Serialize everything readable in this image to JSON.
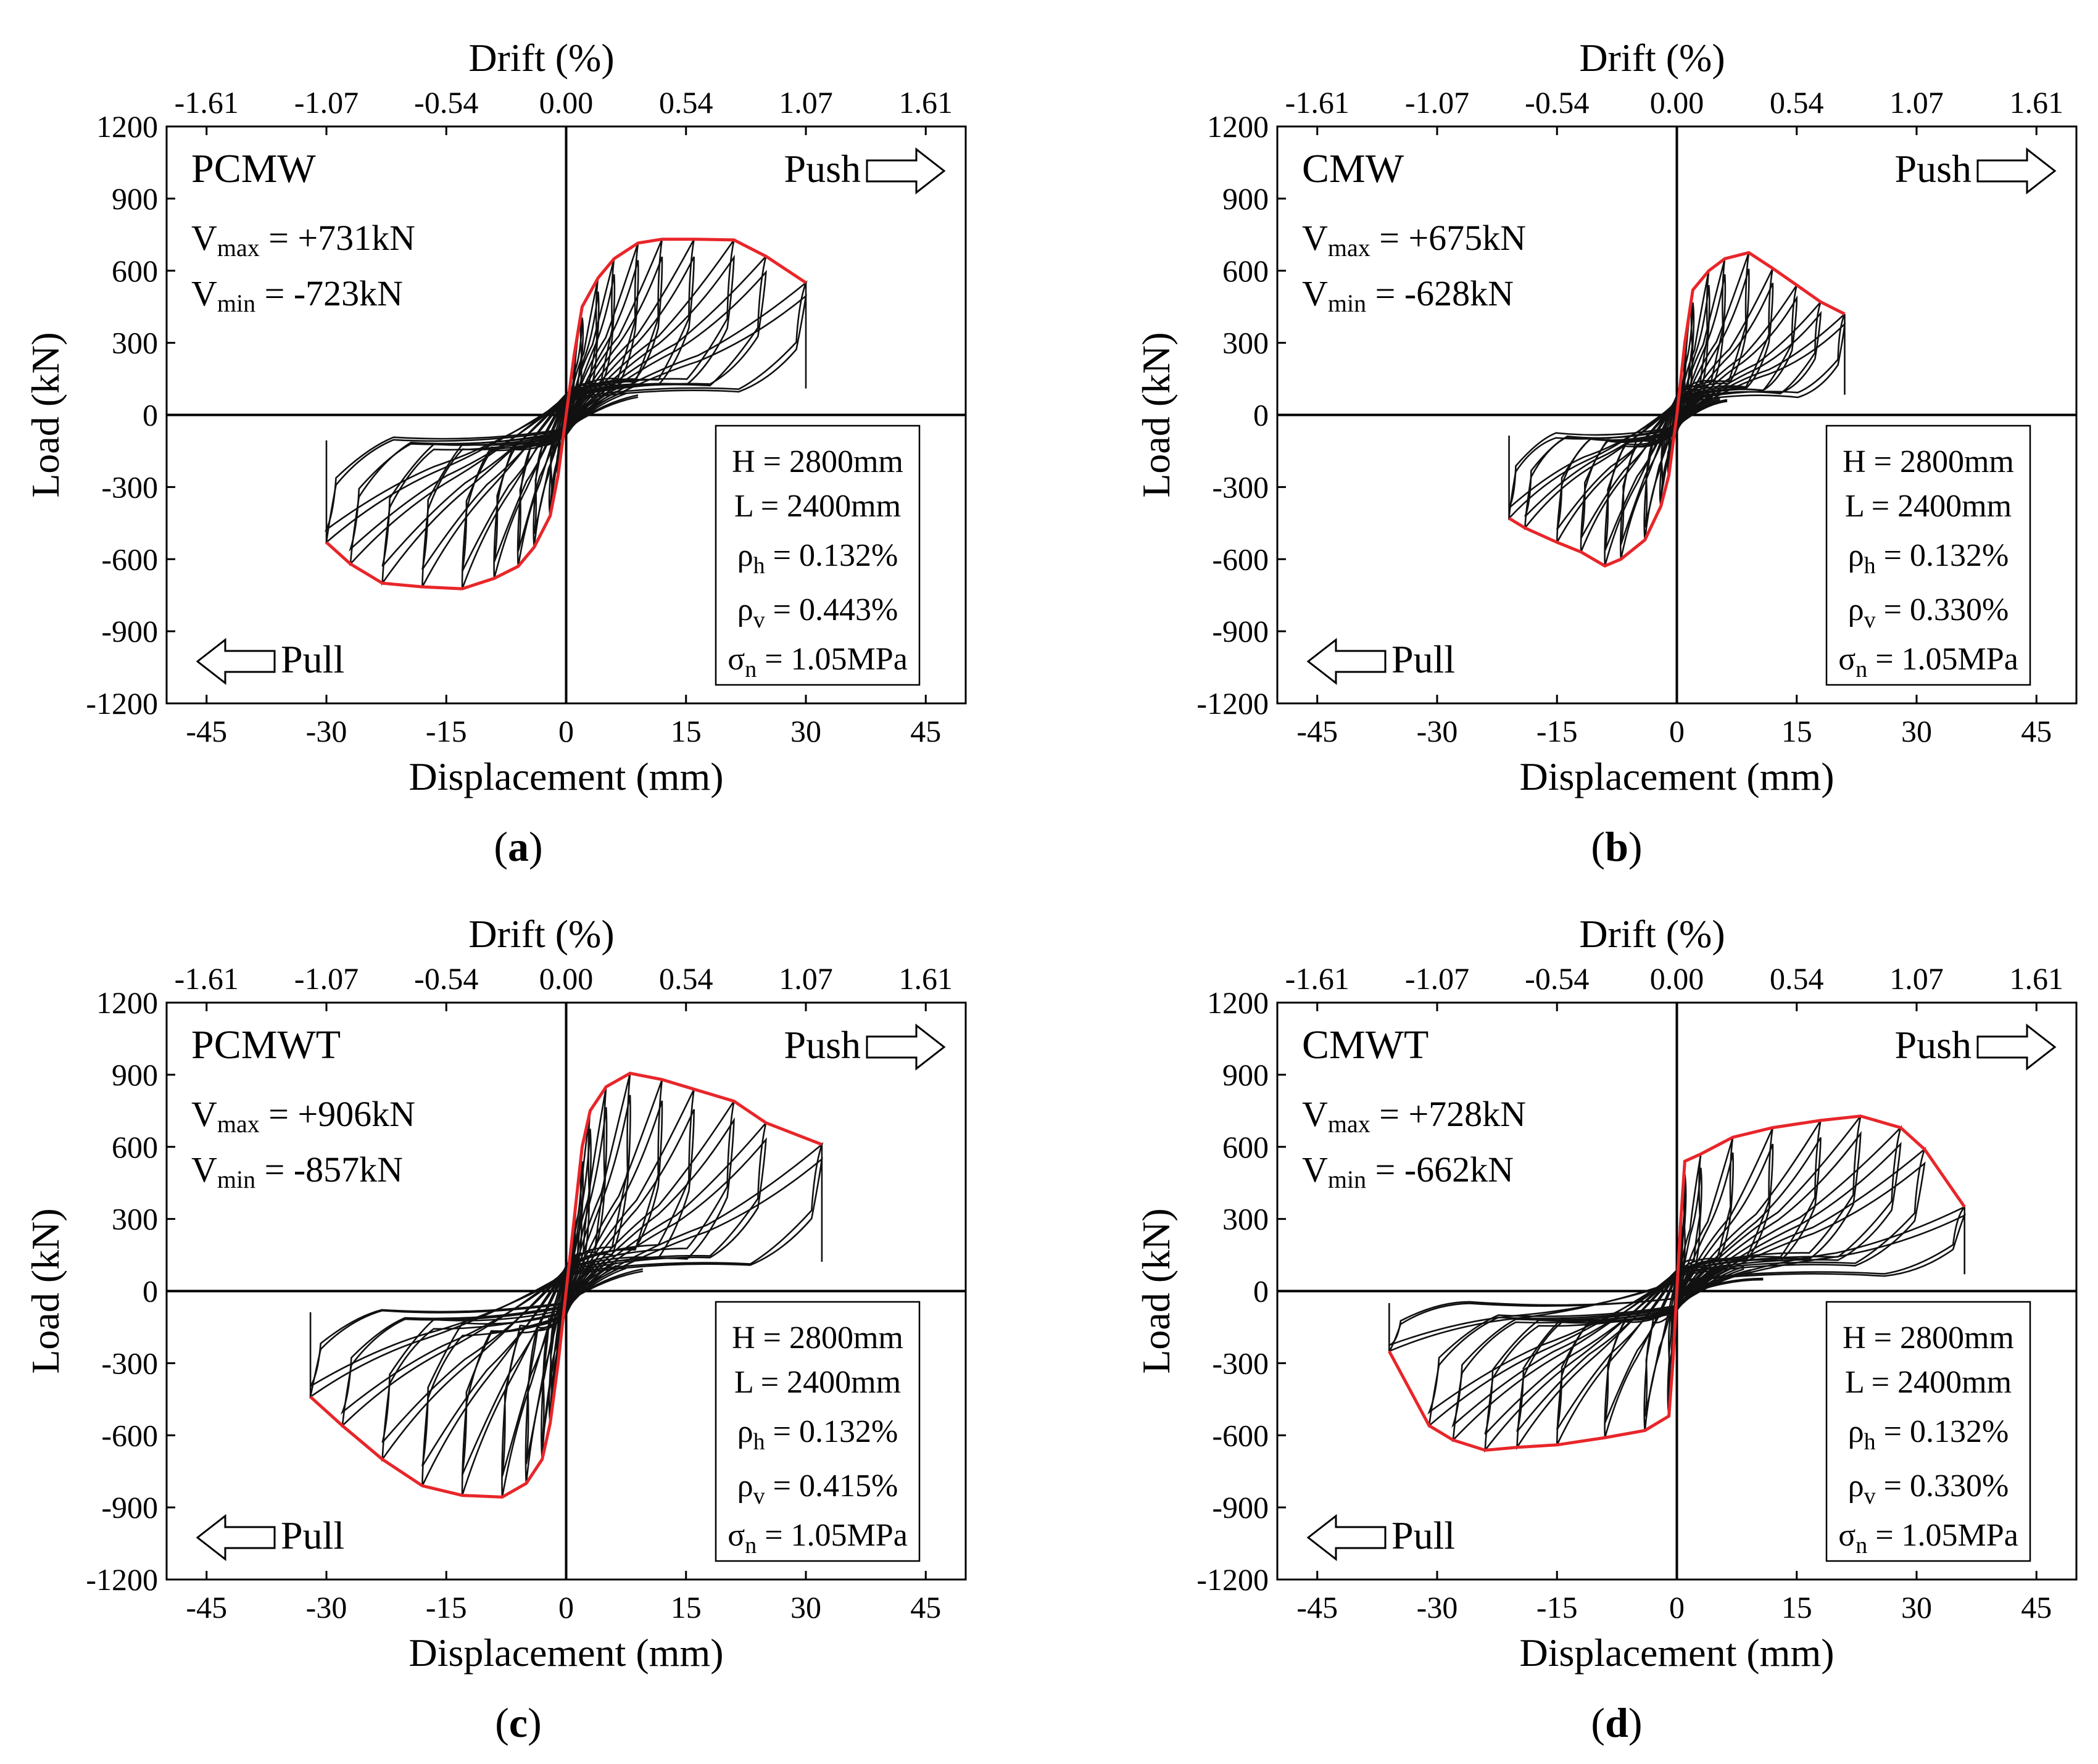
{
  "chart_data": [
    {
      "type": "line",
      "panel_label": "a",
      "specimen": "PCMW",
      "vmax_text": "Vmax = +731kN",
      "vmin_text": "Vmin = -723kN",
      "xlabel": "Displacement (mm)",
      "ylabel": "Load (kN)",
      "x2label": "Drift (%)",
      "xlim": [
        -50,
        50
      ],
      "ylim": [
        -1200,
        1200
      ],
      "xticks": [
        "-45",
        "-30",
        "-15",
        "0",
        "15",
        "30",
        "45"
      ],
      "yticks": [
        "1200",
        "900",
        "600",
        "300",
        "0",
        "-300",
        "-600",
        "-900",
        "-1200"
      ],
      "x2ticks": [
        "-1.61",
        "-1.07",
        "-0.54",
        "0.00",
        "0.54",
        "1.07",
        "1.61"
      ],
      "push_label": "Push",
      "pull_label": "Pull",
      "params": {
        "H": "2800mm",
        "L": "2400mm",
        "rho_h": "0.132%",
        "rho_v": "0.443%",
        "sigma_n": "1.05MPa"
      },
      "envelope_pos": [
        [
          0,
          0
        ],
        [
          1,
          250
        ],
        [
          2,
          450
        ],
        [
          4,
          570
        ],
        [
          6,
          650
        ],
        [
          9,
          715
        ],
        [
          12,
          731
        ],
        [
          16,
          731
        ],
        [
          21,
          728
        ],
        [
          25,
          660
        ],
        [
          30,
          550
        ]
      ],
      "envelope_neg": [
        [
          0,
          0
        ],
        [
          -1,
          -250
        ],
        [
          -2,
          -420
        ],
        [
          -4,
          -550
        ],
        [
          -6,
          -630
        ],
        [
          -9,
          -680
        ],
        [
          -13,
          -723
        ],
        [
          -18,
          -715
        ],
        [
          -23,
          -700
        ],
        [
          -27,
          -620
        ],
        [
          -30,
          -530
        ]
      ]
    },
    {
      "type": "line",
      "panel_label": "b",
      "specimen": "CMW",
      "vmax_text": "Vmax = +675kN",
      "vmin_text": "Vmin = -628kN",
      "xlabel": "Displacement (mm)",
      "ylabel": "Load (kN)",
      "x2label": "Drift (%)",
      "xlim": [
        -50,
        50
      ],
      "ylim": [
        -1200,
        1200
      ],
      "xticks": [
        "-45",
        "-30",
        "-15",
        "0",
        "15",
        "30",
        "45"
      ],
      "yticks": [
        "1200",
        "900",
        "600",
        "300",
        "0",
        "-300",
        "-600",
        "-900",
        "-1200"
      ],
      "x2ticks": [
        "-1.61",
        "-1.07",
        "-0.54",
        "0.00",
        "0.54",
        "1.07",
        "1.61"
      ],
      "push_label": "Push",
      "pull_label": "Pull",
      "params": {
        "H": "2800mm",
        "L": "2400mm",
        "rho_h": "0.132%",
        "rho_v": "0.330%",
        "sigma_n": "1.05MPa"
      },
      "envelope_pos": [
        [
          0,
          0
        ],
        [
          1,
          300
        ],
        [
          2,
          520
        ],
        [
          4,
          600
        ],
        [
          6,
          650
        ],
        [
          9,
          675
        ],
        [
          12,
          610
        ],
        [
          15,
          540
        ],
        [
          18,
          470
        ],
        [
          21,
          420
        ]
      ],
      "envelope_neg": [
        [
          0,
          0
        ],
        [
          -1,
          -250
        ],
        [
          -2,
          -380
        ],
        [
          -4,
          -520
        ],
        [
          -7,
          -600
        ],
        [
          -9,
          -628
        ],
        [
          -12,
          -570
        ],
        [
          -15,
          -530
        ],
        [
          -19,
          -470
        ],
        [
          -21,
          -430
        ]
      ]
    },
    {
      "type": "line",
      "panel_label": "c",
      "specimen": "PCMWT",
      "vmax_text": "Vmax = +906kN",
      "vmin_text": "Vmin = -857kN",
      "xlabel": "Displacement (mm)",
      "ylabel": "Load (kN)",
      "x2label": "Drift (%)",
      "xlim": [
        -50,
        50
      ],
      "ylim": [
        -1200,
        1200
      ],
      "xticks": [
        "-45",
        "-30",
        "-15",
        "0",
        "15",
        "30",
        "45"
      ],
      "yticks": [
        "1200",
        "900",
        "600",
        "300",
        "0",
        "-300",
        "-600",
        "-900",
        "-1200"
      ],
      "x2ticks": [
        "-1.61",
        "-1.07",
        "-0.54",
        "0.00",
        "0.54",
        "1.07",
        "1.61"
      ],
      "push_label": "Push",
      "pull_label": "Pull",
      "params": {
        "H": "2800mm",
        "L": "2400mm",
        "rho_h": "0.132%",
        "rho_v": "0.415%",
        "sigma_n": "1.05MPa"
      },
      "envelope_pos": [
        [
          0,
          0
        ],
        [
          1,
          300
        ],
        [
          2,
          600
        ],
        [
          3,
          750
        ],
        [
          5,
          850
        ],
        [
          8,
          906
        ],
        [
          12,
          880
        ],
        [
          16,
          840
        ],
        [
          21,
          790
        ],
        [
          25,
          700
        ],
        [
          32,
          610
        ]
      ],
      "envelope_neg": [
        [
          0,
          0
        ],
        [
          -1,
          -300
        ],
        [
          -2,
          -550
        ],
        [
          -3,
          -700
        ],
        [
          -5,
          -800
        ],
        [
          -8,
          -857
        ],
        [
          -13,
          -850
        ],
        [
          -18,
          -810
        ],
        [
          -23,
          -700
        ],
        [
          -28,
          -560
        ],
        [
          -32,
          -440
        ]
      ]
    },
    {
      "type": "line",
      "panel_label": "d",
      "specimen": "CMWT",
      "vmax_text": "Vmax = +728kN",
      "vmin_text": "Vmin = -662kN",
      "xlabel": "Displacement (mm)",
      "ylabel": "Load (kN)",
      "x2label": "Drift (%)",
      "xlim": [
        -50,
        50
      ],
      "ylim": [
        -1200,
        1200
      ],
      "xticks": [
        "-45",
        "-30",
        "-15",
        "0",
        "15",
        "30",
        "45"
      ],
      "yticks": [
        "1200",
        "900",
        "600",
        "300",
        "0",
        "-300",
        "-600",
        "-900",
        "-1200"
      ],
      "x2ticks": [
        "-1.61",
        "-1.07",
        "-0.54",
        "0.00",
        "0.54",
        "1.07",
        "1.61"
      ],
      "push_label": "Push",
      "pull_label": "Pull",
      "params": {
        "H": "2800mm",
        "L": "2400mm",
        "rho_h": "0.132%",
        "rho_v": "0.330%",
        "sigma_n": "1.05MPa"
      },
      "envelope_pos": [
        [
          0,
          0
        ],
        [
          0.5,
          300
        ],
        [
          1,
          540
        ],
        [
          3,
          570
        ],
        [
          7,
          640
        ],
        [
          12,
          680
        ],
        [
          18,
          710
        ],
        [
          23,
          728
        ],
        [
          28,
          680
        ],
        [
          31,
          590
        ],
        [
          36,
          350
        ]
      ],
      "envelope_neg": [
        [
          0,
          0
        ],
        [
          -0.5,
          -300
        ],
        [
          -1,
          -520
        ],
        [
          -4,
          -580
        ],
        [
          -9,
          -610
        ],
        [
          -15,
          -640
        ],
        [
          -20,
          -650
        ],
        [
          -24,
          -662
        ],
        [
          -28,
          -620
        ],
        [
          -31,
          -560
        ],
        [
          -36,
          -250
        ]
      ]
    }
  ],
  "captions": {
    "a": {
      "open": "(",
      "letter": "a",
      "close": ")"
    },
    "b": {
      "open": "(",
      "letter": "b",
      "close": ")"
    },
    "c": {
      "open": "(",
      "letter": "c",
      "close": ")"
    },
    "d": {
      "open": "(",
      "letter": "d",
      "close": ")"
    }
  }
}
